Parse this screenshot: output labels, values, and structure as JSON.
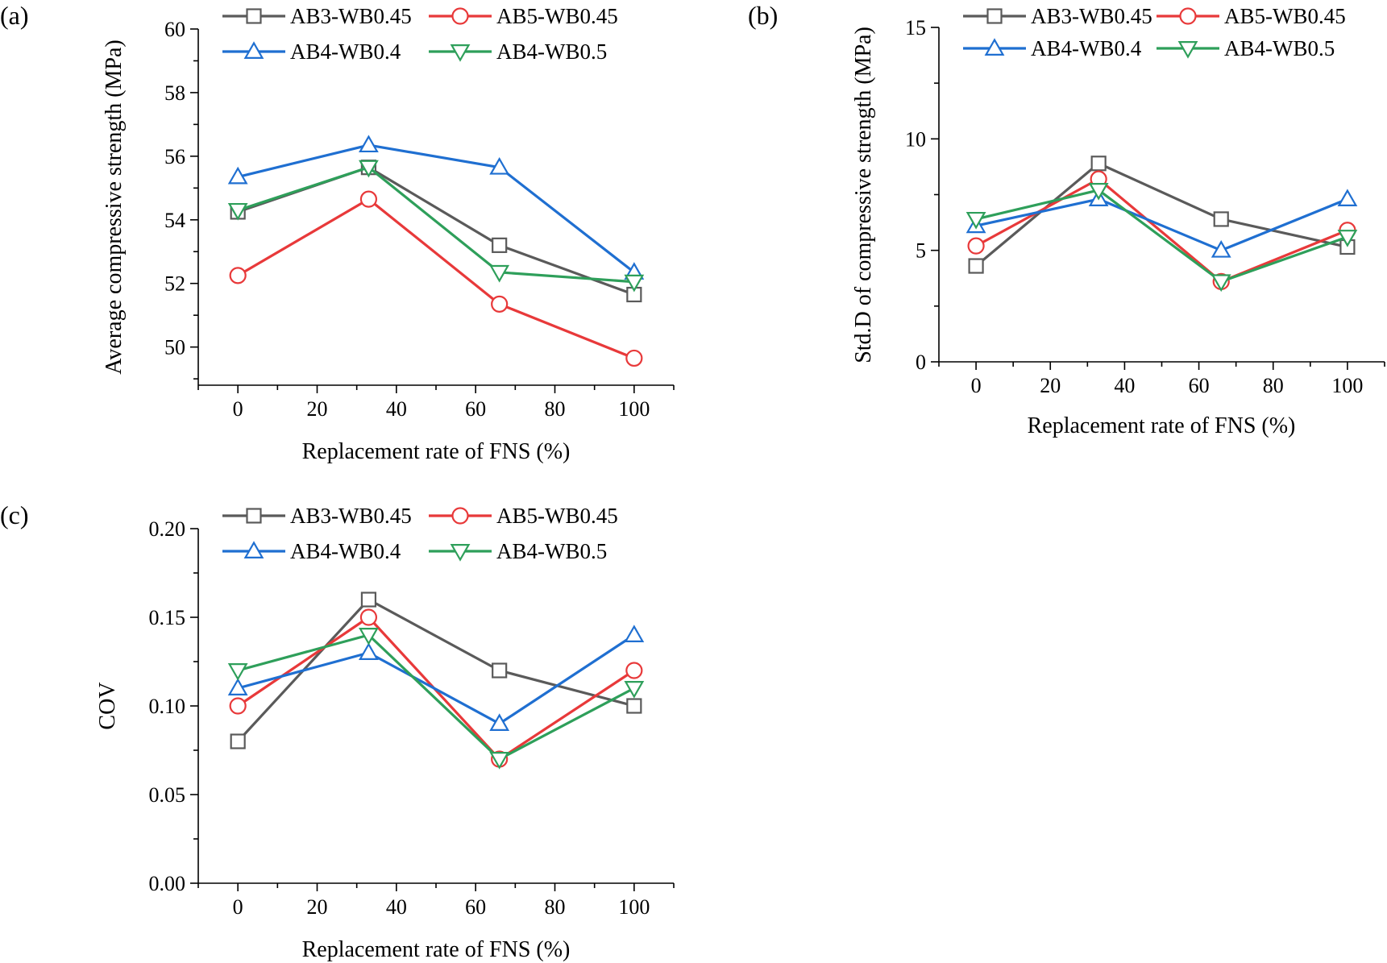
{
  "chart_data": [
    {
      "id": "a",
      "type": "line",
      "panel_label": "(a)",
      "title": "",
      "xlabel": "Replacement rate of FNS (%)",
      "ylabel": "Average compressive strength (MPa)",
      "xlim": [
        -10,
        110
      ],
      "ylim": [
        48.8,
        60
      ],
      "xticks": [
        0,
        20,
        40,
        60,
        80,
        100
      ],
      "xtick_labels": [
        "0",
        "20",
        "40",
        "60",
        "80",
        "100"
      ],
      "yticks": [
        50,
        52,
        54,
        56,
        58,
        60
      ],
      "ytick_labels": [
        "50",
        "52",
        "54",
        "56",
        "58",
        "60"
      ],
      "x": [
        0,
        33,
        66,
        100
      ],
      "legend_position": "top",
      "series": [
        {
          "name": "AB3-WB0.45",
          "color": "#5a5a5a",
          "marker": "square",
          "values": [
            54.25,
            55.65,
            53.2,
            51.65
          ]
        },
        {
          "name": "AB5-WB0.45",
          "color": "#e8393a",
          "marker": "circle",
          "values": [
            52.25,
            54.65,
            51.35,
            49.65
          ]
        },
        {
          "name": "AB4-WB0.4",
          "color": "#1f6fd1",
          "marker": "triangle-up",
          "values": [
            55.35,
            56.35,
            55.65,
            52.35
          ]
        },
        {
          "name": "AB4-WB0.5",
          "color": "#2e9f5a",
          "marker": "triangle-down",
          "values": [
            54.3,
            55.65,
            52.35,
            52.05
          ]
        }
      ]
    },
    {
      "id": "b",
      "type": "line",
      "panel_label": "(b)",
      "title": "",
      "xlabel": "Replacement rate of FNS (%)",
      "ylabel": "Std.D of compressive strength (MPa)",
      "xlim": [
        -10,
        110
      ],
      "ylim": [
        0,
        15
      ],
      "xticks": [
        0,
        20,
        40,
        60,
        80,
        100
      ],
      "xtick_labels": [
        "0",
        "20",
        "40",
        "60",
        "80",
        "100"
      ],
      "yticks": [
        0,
        5,
        10,
        15
      ],
      "ytick_labels": [
        "0",
        "5",
        "10",
        "15"
      ],
      "x": [
        0,
        33,
        66,
        100
      ],
      "legend_position": "top",
      "series": [
        {
          "name": "AB3-WB0.45",
          "color": "#5a5a5a",
          "marker": "square",
          "values": [
            4.3,
            8.9,
            6.4,
            5.15
          ]
        },
        {
          "name": "AB5-WB0.45",
          "color": "#e8393a",
          "marker": "circle",
          "values": [
            5.2,
            8.2,
            3.6,
            5.9
          ]
        },
        {
          "name": "AB4-WB0.4",
          "color": "#1f6fd1",
          "marker": "triangle-up",
          "values": [
            6.1,
            7.3,
            5.0,
            7.3
          ]
        },
        {
          "name": "AB4-WB0.5",
          "color": "#2e9f5a",
          "marker": "triangle-down",
          "values": [
            6.4,
            7.7,
            3.6,
            5.6
          ]
        }
      ]
    },
    {
      "id": "c",
      "type": "line",
      "panel_label": "(c)",
      "title": "",
      "xlabel": "Replacement rate of FNS (%)",
      "ylabel": "COV",
      "xlim": [
        -10,
        110
      ],
      "ylim": [
        0,
        0.2
      ],
      "xticks": [
        0,
        20,
        40,
        60,
        80,
        100
      ],
      "xtick_labels": [
        "0",
        "20",
        "40",
        "60",
        "80",
        "100"
      ],
      "yticks": [
        0,
        0.05,
        0.1,
        0.15,
        0.2
      ],
      "ytick_labels": [
        "0.00",
        "0.05",
        "0.10",
        "0.15",
        "0.20"
      ],
      "x": [
        0,
        33,
        66,
        100
      ],
      "legend_position": "top",
      "series": [
        {
          "name": "AB3-WB0.45",
          "color": "#5a5a5a",
          "marker": "square",
          "values": [
            0.08,
            0.16,
            0.12,
            0.1
          ]
        },
        {
          "name": "AB5-WB0.45",
          "color": "#e8393a",
          "marker": "circle",
          "values": [
            0.1,
            0.15,
            0.07,
            0.12
          ]
        },
        {
          "name": "AB4-WB0.4",
          "color": "#1f6fd1",
          "marker": "triangle-up",
          "values": [
            0.11,
            0.13,
            0.09,
            0.14
          ]
        },
        {
          "name": "AB4-WB0.5",
          "color": "#2e9f5a",
          "marker": "triangle-down",
          "values": [
            0.12,
            0.14,
            0.07,
            0.11
          ]
        }
      ]
    }
  ]
}
